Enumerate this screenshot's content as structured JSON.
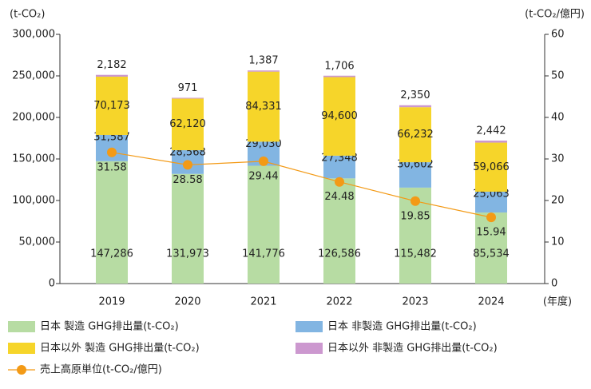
{
  "chart_data": {
    "type": "bar",
    "y_label": "(t-CO₂)",
    "y2_label": "(t-CO₂/億円)",
    "x_label": "(年度)",
    "categories": [
      "2019",
      "2020",
      "2021",
      "2022",
      "2023",
      "2024"
    ],
    "series": [
      {
        "name": "日本 製造 GHG排出量(t-CO₂)",
        "color": "#b7dca3",
        "values": [
          147286,
          131973,
          141776,
          126586,
          115482,
          85534
        ],
        "value_labels": [
          "147,286",
          "131,973",
          "141,776",
          "126,586",
          "115,482",
          "85,534"
        ]
      },
      {
        "name": "日本 非製造 GHG排出量(t-CO₂)",
        "color": "#82b5e2",
        "values": [
          31587,
          28568,
          29030,
          27348,
          30602,
          25063
        ],
        "value_labels": [
          "31,587",
          "28,568",
          "29,030",
          "27,348",
          "30,602",
          "25,063"
        ]
      },
      {
        "name": "日本以外 製造 GHG排出量(t-CO₂)",
        "color": "#f6d52a",
        "values": [
          70173,
          62120,
          84331,
          94600,
          66232,
          59066
        ],
        "value_labels": [
          "70,173",
          "62,120",
          "84,331",
          "94,600",
          "66,232",
          "59,066"
        ]
      },
      {
        "name": "日本以外 非製造 GHG排出量(t-CO₂)",
        "color": "#cc98cf",
        "values": [
          2182,
          971,
          1387,
          1706,
          2350,
          2442
        ],
        "value_labels": [
          "2,182",
          "971",
          "1,387",
          "1,706",
          "2,350",
          "2,442"
        ]
      },
      {
        "name": "売上高原単位(t-CO₂/億円)",
        "color": "#f39a16",
        "type": "line",
        "axis": "y2",
        "values": [
          31.58,
          28.58,
          29.44,
          24.48,
          19.85,
          15.94
        ]
      }
    ],
    "ylim": [
      0,
      300000
    ],
    "yticks": [
      0,
      {
        "value": 50000,
        "label": "50,000"
      },
      {
        "value": 100000,
        "label": "100,000"
      },
      {
        "value": 150000,
        "label": "150,000"
      },
      {
        "value": 200000,
        "label": "200,000"
      },
      {
        "value": 250000,
        "label": "250,000"
      },
      {
        "value": 300000,
        "label": "300,000"
      }
    ],
    "y2lim": [
      0,
      60
    ],
    "y2ticks": [
      0,
      10,
      20,
      30,
      40,
      50,
      60
    ]
  }
}
